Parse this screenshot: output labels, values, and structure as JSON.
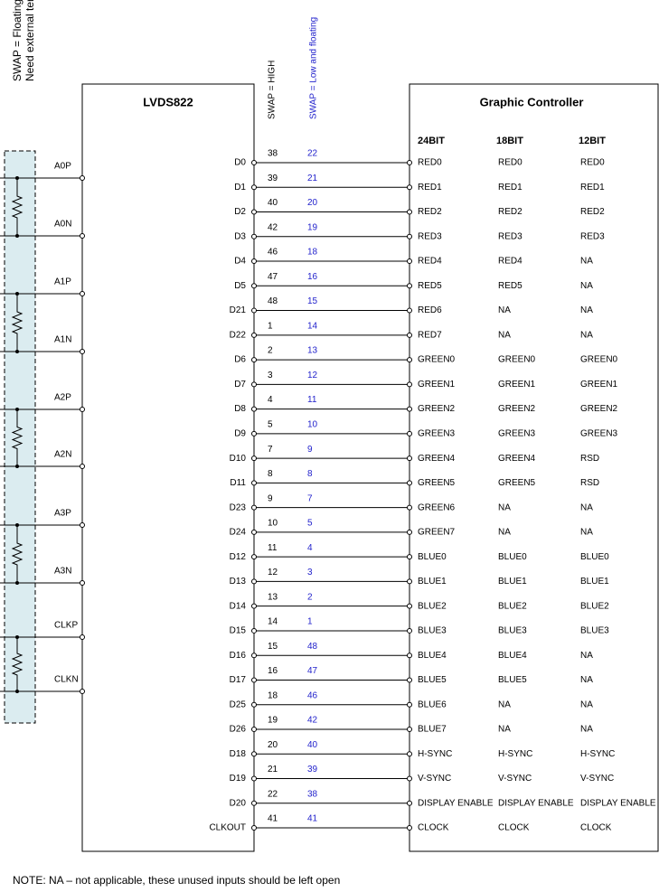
{
  "side_labels": [
    "SWAP = Floating",
    "Need external terminators"
  ],
  "swap_high": "SWAP = HIGH",
  "swap_low": "SWAP = Low and floating",
  "lvds_title": "LVDS822",
  "controller_title": "Graphic Controller",
  "column_headers": [
    "24BIT",
    "18BIT",
    "12BIT"
  ],
  "inputs": [
    "A0P",
    "A0N",
    "A1P",
    "A1N",
    "A2P",
    "A2N",
    "A3P",
    "A3N",
    "CLKP",
    "CLKN"
  ],
  "rows": [
    [
      "D0",
      38,
      22,
      "RED0",
      "RED0",
      "RED0"
    ],
    [
      "D1",
      39,
      21,
      "RED1",
      "RED1",
      "RED1"
    ],
    [
      "D2",
      40,
      20,
      "RED2",
      "RED2",
      "RED2"
    ],
    [
      "D3",
      42,
      19,
      "RED3",
      "RED3",
      "RED3"
    ],
    [
      "D4",
      46,
      18,
      "RED4",
      "RED4",
      "NA"
    ],
    [
      "D5",
      47,
      16,
      "RED5",
      "RED5",
      "NA"
    ],
    [
      "D21",
      48,
      15,
      "RED6",
      "NA",
      "NA"
    ],
    [
      "D22",
      1,
      14,
      "RED7",
      "NA",
      "NA"
    ],
    [
      "D6",
      2,
      13,
      "GREEN0",
      "GREEN0",
      "GREEN0"
    ],
    [
      "D7",
      3,
      12,
      "GREEN1",
      "GREEN1",
      "GREEN1"
    ],
    [
      "D8",
      4,
      11,
      "GREEN2",
      "GREEN2",
      "GREEN2"
    ],
    [
      "D9",
      5,
      10,
      "GREEN3",
      "GREEN3",
      "GREEN3"
    ],
    [
      "D10",
      7,
      9,
      "GREEN4",
      "GREEN4",
      "RSD"
    ],
    [
      "D11",
      8,
      8,
      "GREEN5",
      "GREEN5",
      "RSD"
    ],
    [
      "D23",
      9,
      7,
      "GREEN6",
      "NA",
      "NA"
    ],
    [
      "D24",
      10,
      5,
      "GREEN7",
      "NA",
      "NA"
    ],
    [
      "D12",
      11,
      4,
      "BLUE0",
      "BLUE0",
      "BLUE0"
    ],
    [
      "D13",
      12,
      3,
      "BLUE1",
      "BLUE1",
      "BLUE1"
    ],
    [
      "D14",
      13,
      2,
      "BLUE2",
      "BLUE2",
      "BLUE2"
    ],
    [
      "D15",
      14,
      1,
      "BLUE3",
      "BLUE3",
      "BLUE3"
    ],
    [
      "D16",
      15,
      48,
      "BLUE4",
      "BLUE4",
      "NA"
    ],
    [
      "D17",
      16,
      47,
      "BLUE5",
      "BLUE5",
      "NA"
    ],
    [
      "D25",
      18,
      46,
      "BLUE6",
      "NA",
      "NA"
    ],
    [
      "D26",
      19,
      42,
      "BLUE7",
      "NA",
      "NA"
    ],
    [
      "D18",
      20,
      40,
      "H-SYNC",
      "H-SYNC",
      "H-SYNC"
    ],
    [
      "D19",
      21,
      39,
      "V-SYNC",
      "V-SYNC",
      "V-SYNC"
    ],
    [
      "D20",
      22,
      38,
      "DISPLAY ENABLE",
      "DISPLAY ENABLE",
      "DISPLAY ENABLE"
    ],
    [
      "CLKOUT",
      41,
      41,
      "CLOCK",
      "CLOCK",
      "CLOCK"
    ]
  ],
  "note": "NOTE: NA – not applicable, these unused inputs should be left open"
}
